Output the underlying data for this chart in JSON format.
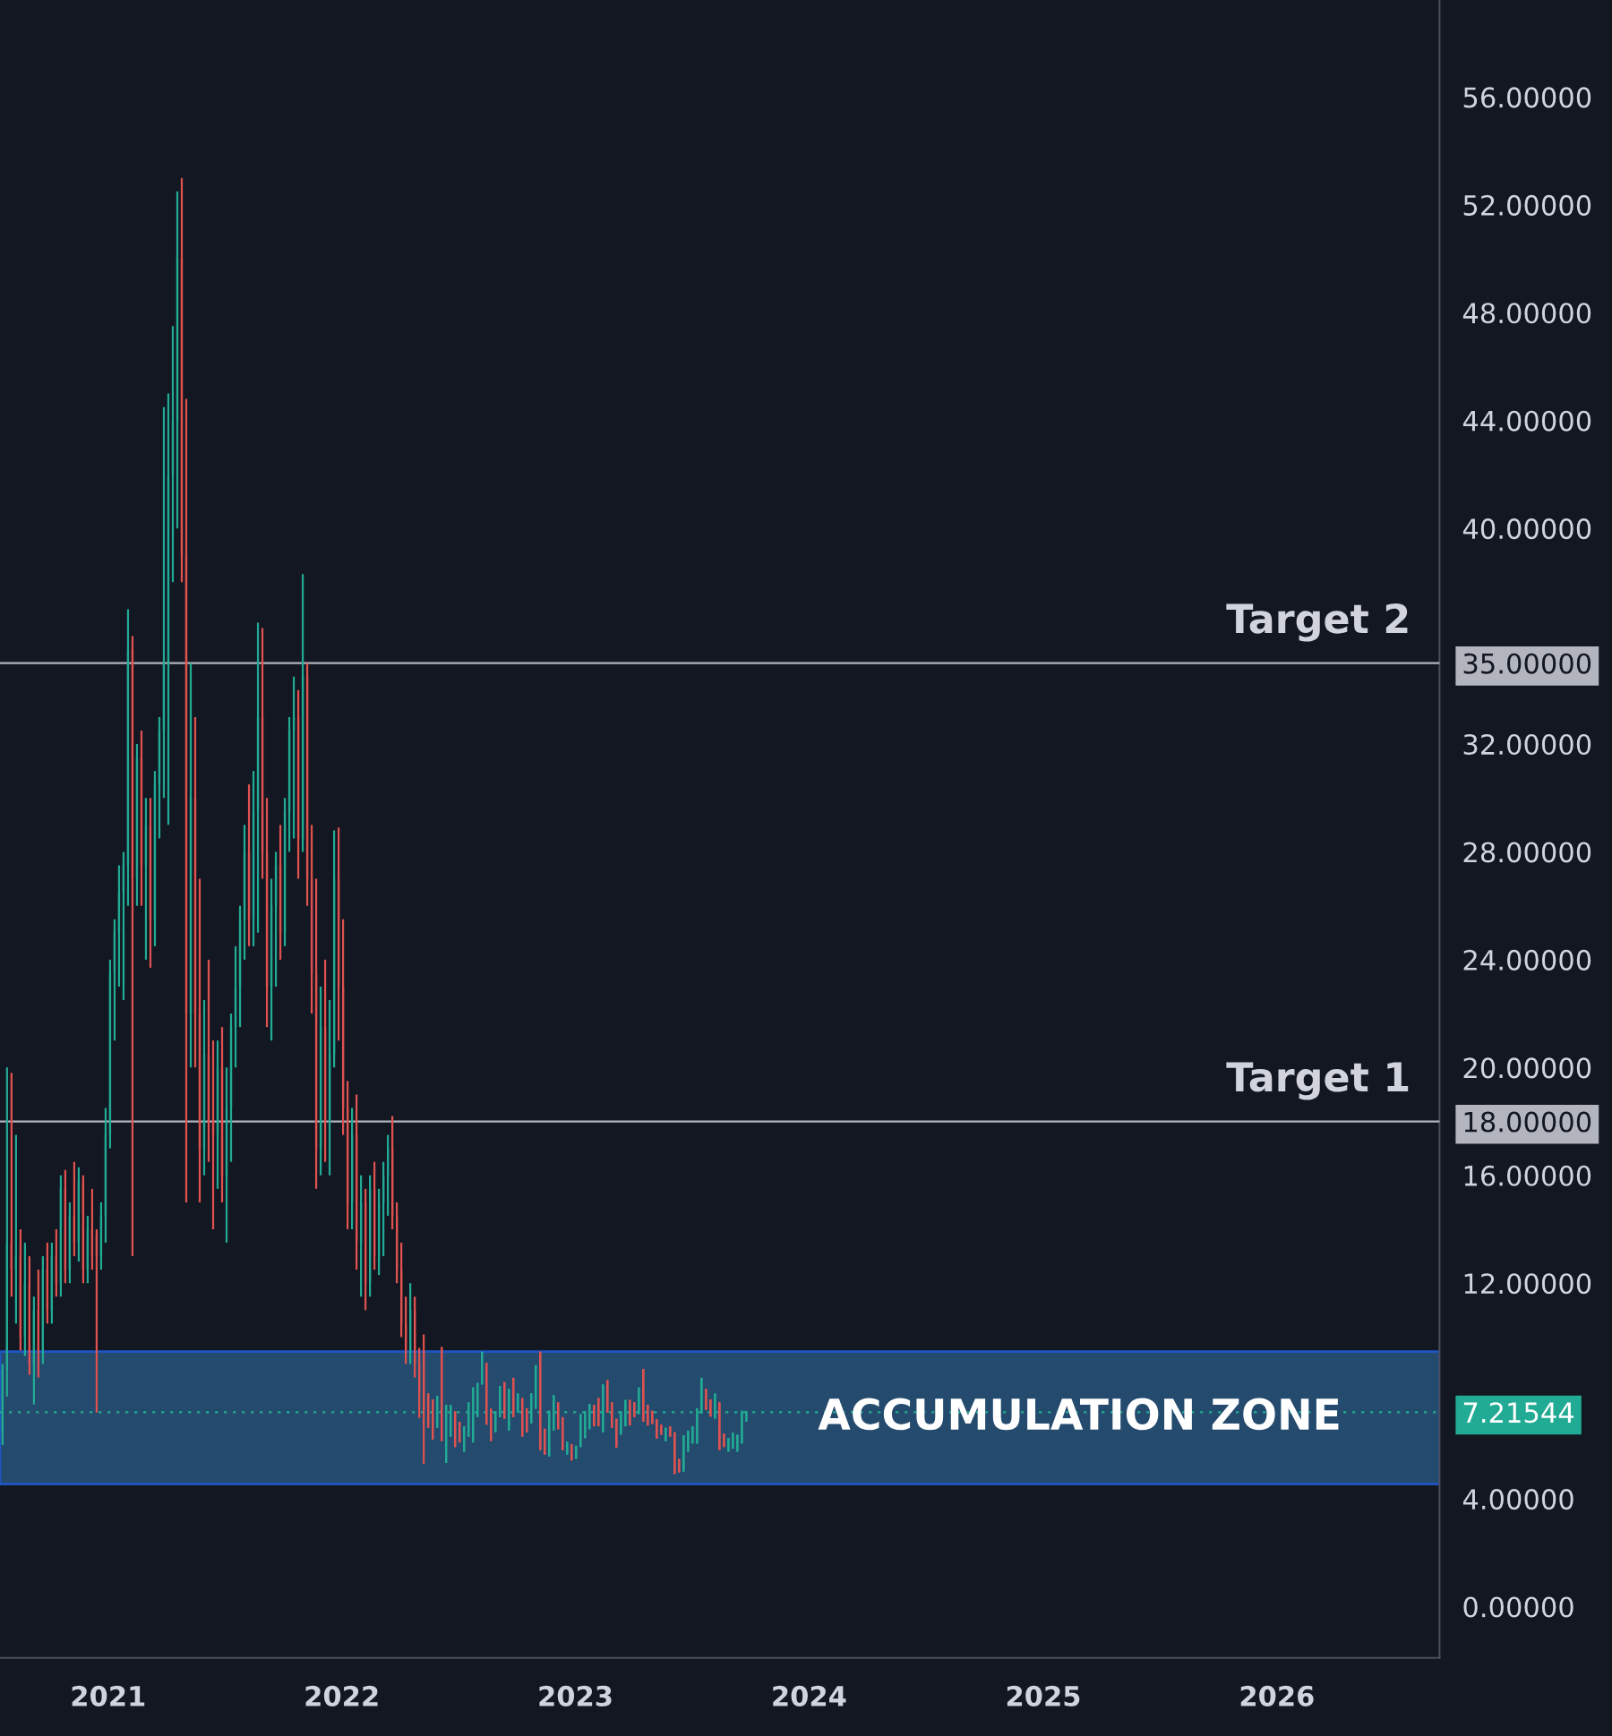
{
  "chart_data": {
    "type": "candlestick",
    "x": [
      "2020-07-20",
      "2020-07-27",
      "2020-08-03",
      "2020-08-10",
      "2020-08-17",
      "2020-08-24",
      "2020-08-31",
      "2020-09-07",
      "2020-09-14",
      "2020-09-21",
      "2020-09-28",
      "2020-10-05",
      "2020-10-12",
      "2020-10-19",
      "2020-10-26",
      "2020-11-02",
      "2020-11-09",
      "2020-11-16",
      "2020-11-23",
      "2020-11-30",
      "2020-12-07",
      "2020-12-14",
      "2020-12-21",
      "2020-12-28",
      "2021-01-04",
      "2021-01-11",
      "2021-01-18",
      "2021-01-25",
      "2021-02-01",
      "2021-02-08",
      "2021-02-15",
      "2021-02-22",
      "2021-03-01",
      "2021-03-08",
      "2021-03-15",
      "2021-03-22",
      "2021-03-29",
      "2021-04-05",
      "2021-04-12",
      "2021-04-19",
      "2021-04-26",
      "2021-05-03",
      "2021-05-10",
      "2021-05-17",
      "2021-05-24",
      "2021-05-31",
      "2021-06-07",
      "2021-06-14",
      "2021-06-21",
      "2021-06-28",
      "2021-07-05",
      "2021-07-12",
      "2021-07-19",
      "2021-07-26",
      "2021-08-02",
      "2021-08-09",
      "2021-08-16",
      "2021-08-23",
      "2021-08-30",
      "2021-09-06",
      "2021-09-13",
      "2021-09-20",
      "2021-09-27",
      "2021-10-04",
      "2021-10-11",
      "2021-10-18",
      "2021-10-25",
      "2021-11-01",
      "2021-11-08",
      "2021-11-15",
      "2021-11-22",
      "2021-11-29",
      "2021-12-06",
      "2021-12-13",
      "2021-12-20",
      "2021-12-27",
      "2022-01-03",
      "2022-01-10",
      "2022-01-17",
      "2022-01-24",
      "2022-01-31",
      "2022-02-07",
      "2022-02-14",
      "2022-02-21",
      "2022-02-28",
      "2022-03-07",
      "2022-03-14",
      "2022-03-21",
      "2022-03-28",
      "2022-04-04",
      "2022-04-11",
      "2022-04-18",
      "2022-04-25",
      "2022-05-02",
      "2022-05-09",
      "2022-05-16",
      "2022-05-23",
      "2022-05-30",
      "2022-06-06",
      "2022-06-13",
      "2022-06-20",
      "2022-06-27",
      "2022-07-04",
      "2022-07-11",
      "2022-07-18",
      "2022-07-25",
      "2022-08-01",
      "2022-08-08",
      "2022-08-15",
      "2022-08-22",
      "2022-08-29",
      "2022-09-05",
      "2022-09-12",
      "2022-09-19",
      "2022-09-26",
      "2022-10-03",
      "2022-10-10",
      "2022-10-17",
      "2022-10-24",
      "2022-10-31",
      "2022-11-07",
      "2022-11-14",
      "2022-11-21",
      "2022-11-28",
      "2022-12-05",
      "2022-12-12",
      "2022-12-19",
      "2022-12-26",
      "2023-01-02",
      "2023-01-09",
      "2023-01-16",
      "2023-01-23",
      "2023-01-30",
      "2023-02-06",
      "2023-02-13",
      "2023-02-20",
      "2023-02-27",
      "2023-03-06",
      "2023-03-13",
      "2023-03-20",
      "2023-03-27",
      "2023-04-03",
      "2023-04-10",
      "2023-04-17",
      "2023-04-24",
      "2023-05-01",
      "2023-05-08",
      "2023-05-15",
      "2023-05-22",
      "2023-05-29",
      "2023-06-05",
      "2023-06-12",
      "2023-06-19",
      "2023-06-26",
      "2023-07-03",
      "2023-07-10",
      "2023-07-17",
      "2023-07-24",
      "2023-07-31",
      "2023-08-07",
      "2023-08-14",
      "2023-08-21",
      "2023-08-28",
      "2023-09-04",
      "2023-09-11",
      "2023-09-18",
      "2023-09-25"
    ],
    "ohlc": [
      [
        6.5,
        9,
        6,
        8.8
      ],
      [
        8.8,
        20,
        7.8,
        13.5
      ],
      [
        13.5,
        19.8,
        11.5,
        12.5
      ],
      [
        12.5,
        17.5,
        10.5,
        13
      ],
      [
        13,
        14,
        9.5,
        10
      ],
      [
        10,
        13.5,
        9.3,
        12
      ],
      [
        12,
        13,
        8.6,
        9
      ],
      [
        9,
        11.5,
        7.5,
        11
      ],
      [
        11,
        12.5,
        8.5,
        9.5
      ],
      [
        9.5,
        13,
        9,
        12.5
      ],
      [
        12.5,
        13.5,
        10.5,
        11
      ],
      [
        11,
        13.5,
        10.5,
        13
      ],
      [
        13,
        14,
        11.5,
        12
      ],
      [
        12,
        16,
        11.5,
        15.5
      ],
      [
        15.5,
        16.2,
        12,
        12.5
      ],
      [
        12.5,
        15,
        12,
        14.5
      ],
      [
        14.5,
        16.5,
        13,
        13.5
      ],
      [
        13.5,
        16.3,
        12.8,
        15.8
      ],
      [
        15.8,
        16,
        12,
        12.5
      ],
      [
        12.5,
        14.5,
        12,
        14
      ],
      [
        14,
        15.5,
        12.5,
        13
      ],
      [
        13.8,
        14,
        7.2,
        13
      ],
      [
        13,
        15,
        12.5,
        14.5
      ],
      [
        14.5,
        18.5,
        13.5,
        17.5
      ],
      [
        17.5,
        24,
        17,
        23.5
      ],
      [
        23.5,
        25.5,
        21,
        25
      ],
      [
        25,
        27.5,
        23,
        26.5
      ],
      [
        26.5,
        28,
        22.5,
        27.5
      ],
      [
        27.5,
        37,
        26,
        35.5
      ],
      [
        35.5,
        36,
        13,
        27
      ],
      [
        27,
        32,
        26,
        31.5
      ],
      [
        31.5,
        32.5,
        26,
        27.5
      ],
      [
        27.5,
        30,
        24,
        29
      ],
      [
        29,
        30,
        23.7,
        25.5
      ],
      [
        25.5,
        31,
        24.5,
        30.5
      ],
      [
        30.5,
        33,
        28.5,
        32.5
      ],
      [
        32.5,
        44.5,
        30,
        35
      ],
      [
        35,
        45,
        29,
        42
      ],
      [
        42,
        47.5,
        38,
        44
      ],
      [
        44,
        52.5,
        40,
        50
      ],
      [
        50,
        53,
        38,
        39
      ],
      [
        39,
        44.8,
        15,
        22
      ],
      [
        22,
        35,
        20,
        30
      ],
      [
        30,
        33,
        20,
        22
      ],
      [
        22,
        27,
        15,
        17
      ],
      [
        17,
        22.5,
        16,
        20.5
      ],
      [
        20.5,
        24,
        16.5,
        18
      ],
      [
        18,
        21,
        14,
        17.5
      ],
      [
        17.5,
        21,
        15.5,
        20
      ],
      [
        20,
        21.5,
        15,
        16
      ],
      [
        16,
        20,
        13.5,
        18.5
      ],
      [
        18.5,
        22,
        16.5,
        21.5
      ],
      [
        21.5,
        24.5,
        20,
        23
      ],
      [
        23,
        26,
        21.5,
        25.5
      ],
      [
        25.5,
        29,
        24,
        28
      ],
      [
        28,
        30.5,
        24.5,
        25.5
      ],
      [
        25.5,
        31,
        24.5,
        29.5
      ],
      [
        29.5,
        36.5,
        25,
        33
      ],
      [
        33,
        36.3,
        27,
        28
      ],
      [
        28,
        30,
        21.5,
        23
      ],
      [
        23,
        27,
        21,
        26
      ],
      [
        26,
        28,
        23,
        27.5
      ],
      [
        27.5,
        29,
        24,
        25
      ],
      [
        25,
        30,
        24.5,
        29.5
      ],
      [
        29.5,
        33,
        28,
        32.5
      ],
      [
        32.5,
        34.5,
        28.5,
        33
      ],
      [
        33,
        34,
        27,
        28.5
      ],
      [
        28.5,
        38.3,
        28,
        34.5
      ],
      [
        34.5,
        35,
        26,
        27
      ],
      [
        27,
        29,
        22,
        23.5
      ],
      [
        23.5,
        27,
        15.5,
        17
      ],
      [
        17,
        23,
        16,
        21.5
      ],
      [
        21.5,
        24,
        16.5,
        18
      ],
      [
        18,
        22.5,
        16,
        20.5
      ],
      [
        20.5,
        28.8,
        20,
        27
      ],
      [
        27,
        28.9,
        21,
        23
      ],
      [
        23,
        25.5,
        17.5,
        18.5
      ],
      [
        18.5,
        19.5,
        14,
        15
      ],
      [
        15,
        18.5,
        14,
        17.5
      ],
      [
        17.5,
        19,
        12.5,
        13.5
      ],
      [
        13.5,
        16,
        11.5,
        15
      ],
      [
        15,
        15.5,
        11,
        12
      ],
      [
        12,
        16,
        11.5,
        15.5
      ],
      [
        15.5,
        16.5,
        12.5,
        13
      ],
      [
        13,
        15.5,
        12.3,
        15
      ],
      [
        15,
        16.5,
        13,
        16
      ],
      [
        16,
        17.5,
        14.5,
        17
      ],
      [
        17,
        18.2,
        14,
        14.5
      ],
      [
        14.5,
        15,
        12,
        12.5
      ],
      [
        12.5,
        13.5,
        10,
        10.5
      ],
      [
        10.5,
        11.5,
        9,
        9.5
      ],
      [
        9.5,
        12,
        9,
        11
      ],
      [
        11,
        11.5,
        8.5,
        9
      ],
      [
        9,
        9.6,
        7,
        8
      ],
      [
        9.5,
        10.1,
        5.3,
        7.3
      ],
      [
        7.91,
        7.91,
        6.64,
        6.64
      ],
      [
        7.69,
        7.69,
        6.2,
        6.2
      ],
      [
        6.64,
        7.82,
        6.64,
        7.82
      ],
      [
        9.63,
        9.63,
        6.14,
        6.14
      ],
      [
        5.33,
        7.49,
        5.33,
        7.49
      ],
      [
        6.31,
        7.49,
        6.31,
        7.49
      ],
      [
        7.25,
        7.25,
        5.92,
        5.92
      ],
      [
        6.86,
        6.86,
        6.09,
        6.09
      ],
      [
        5.75,
        6.69,
        5.75,
        6.69
      ],
      [
        6.31,
        7.58,
        6.31,
        7.58
      ],
      [
        6.09,
        8.13,
        6.09,
        8.13
      ],
      [
        7.03,
        8.3,
        7.03,
        8.3
      ],
      [
        8.24,
        9.46,
        8.24,
        9.46
      ],
      [
        9.04,
        9.04,
        6.75,
        6.75
      ],
      [
        7.34,
        7.34,
        6.14,
        6.14
      ],
      [
        6.47,
        7.25,
        6.47,
        7.25
      ],
      [
        7.03,
        8.19,
        7.03,
        8.19
      ],
      [
        8.33,
        8.33,
        6.97,
        6.97
      ],
      [
        6.53,
        8.08,
        6.53,
        8.08
      ],
      [
        8.49,
        8.49,
        7.03,
        7.03
      ],
      [
        7.19,
        7.91,
        7.19,
        7.91
      ],
      [
        7.74,
        7.74,
        6.31,
        6.31
      ],
      [
        7.36,
        7.36,
        6.47,
        6.47
      ],
      [
        6.8,
        7.91,
        6.8,
        7.91
      ],
      [
        7.34,
        8.96,
        7.34,
        8.96
      ],
      [
        9.46,
        9.46,
        5.81,
        5.81
      ],
      [
        6.6,
        6.6,
        5.64,
        5.64
      ],
      [
        5.57,
        7.27,
        5.57,
        7.27
      ],
      [
        6.53,
        7.85,
        6.53,
        7.85
      ],
      [
        7.58,
        7.58,
        6.58,
        6.58
      ],
      [
        7.03,
        7.03,
        5.81,
        5.81
      ],
      [
        5.64,
        6.12,
        5.64,
        6.12
      ],
      [
        6.03,
        6.03,
        5.42,
        5.42
      ],
      [
        5.48,
        5.97,
        5.48,
        5.97
      ],
      [
        5.92,
        7.14,
        5.92,
        7.14
      ],
      [
        6.25,
        7.25,
        6.25,
        7.25
      ],
      [
        6.58,
        7.52,
        6.58,
        7.52
      ],
      [
        7.49,
        7.49,
        6.69,
        6.69
      ],
      [
        7.74,
        7.74,
        6.69,
        6.69
      ],
      [
        6.47,
        8.24,
        6.47,
        8.24
      ],
      [
        8.41,
        8.41,
        7.19,
        7.19
      ],
      [
        7.58,
        7.58,
        6.64,
        6.64
      ],
      [
        6.97,
        6.97,
        5.9,
        5.9
      ],
      [
        6.38,
        7.25,
        6.38,
        7.25
      ],
      [
        6.69,
        7.67,
        6.69,
        7.67
      ],
      [
        7.67,
        7.67,
        6.72,
        6.72
      ],
      [
        7.58,
        7.58,
        7.03,
        7.03
      ],
      [
        7.14,
        8.13,
        7.14,
        8.13
      ],
      [
        8.82,
        8.82,
        6.86,
        6.86
      ],
      [
        7.49,
        7.49,
        6.72,
        6.72
      ],
      [
        7.27,
        7.27,
        6.78,
        6.78
      ],
      [
        6.95,
        6.95,
        6.23,
        6.23
      ],
      [
        6.75,
        6.75,
        6.38,
        6.38
      ],
      [
        6.14,
        6.64,
        6.14,
        6.64
      ],
      [
        6.69,
        6.69,
        6.31,
        6.31
      ],
      [
        6.47,
        6.47,
        4.92,
        4.92
      ],
      [
        5.48,
        5.48,
        4.98,
        4.98
      ],
      [
        5.01,
        6.36,
        5.01,
        6.36
      ],
      [
        5.75,
        6.53,
        5.75,
        6.53
      ],
      [
        6.05,
        6.69,
        6.05,
        6.69
      ],
      [
        6.05,
        7.36,
        6.05,
        7.36
      ],
      [
        7.16,
        8.49,
        7.16,
        8.49
      ],
      [
        8.08,
        8.08,
        7.3,
        7.3
      ],
      [
        7.69,
        7.69,
        7.05,
        7.05
      ],
      [
        6.97,
        7.91,
        6.97,
        7.91
      ],
      [
        7.58,
        7.58,
        5.81,
        5.81
      ],
      [
        6.42,
        6.42,
        5.92,
        5.92
      ],
      [
        5.75,
        6.25,
        5.75,
        6.25
      ],
      [
        5.86,
        6.45,
        5.86,
        6.45
      ],
      [
        5.75,
        6.38,
        5.75,
        6.38
      ],
      [
        6.05,
        7.27,
        6.05,
        7.27
      ],
      [
        6.86,
        7.27,
        6.86,
        7.21544
      ]
    ],
    "colors": [
      "#22ab94",
      "#22ab94",
      "#e0524f",
      "#22ab94",
      "#e0524f",
      "#22ab94",
      "#e0524f",
      "#22ab94",
      "#e0524f",
      "#22ab94",
      "#e0524f",
      "#22ab94",
      "#e0524f",
      "#22ab94",
      "#e0524f",
      "#22ab94",
      "#e0524f",
      "#22ab94",
      "#e0524f",
      "#22ab94",
      "#e0524f",
      "#e0524f",
      "#22ab94",
      "#22ab94",
      "#22ab94",
      "#22ab94",
      "#22ab94",
      "#22ab94",
      "#22ab94",
      "#e0524f",
      "#22ab94",
      "#e0524f",
      "#22ab94",
      "#e0524f",
      "#22ab94",
      "#22ab94",
      "#22ab94",
      "#22ab94",
      "#22ab94",
      "#22ab94",
      "#e0524f",
      "#e0524f",
      "#22ab94",
      "#e0524f",
      "#e0524f",
      "#22ab94",
      "#e0524f",
      "#e0524f",
      "#22ab94",
      "#e0524f",
      "#22ab94",
      "#22ab94",
      "#22ab94",
      "#22ab94",
      "#22ab94",
      "#e0524f",
      "#22ab94",
      "#22ab94",
      "#e0524f",
      "#e0524f",
      "#22ab94",
      "#22ab94",
      "#e0524f",
      "#22ab94",
      "#22ab94",
      "#22ab94",
      "#e0524f",
      "#22ab94",
      "#e0524f",
      "#e0524f",
      "#e0524f",
      "#22ab94",
      "#e0524f",
      "#22ab94",
      "#22ab94",
      "#e0524f",
      "#e0524f",
      "#e0524f",
      "#22ab94",
      "#e0524f",
      "#22ab94",
      "#e0524f",
      "#22ab94",
      "#e0524f",
      "#22ab94",
      "#22ab94",
      "#22ab94",
      "#e0524f",
      "#e0524f",
      "#e0524f",
      "#e0524f",
      "#22ab94",
      "#e0524f",
      "#e0524f",
      "#e0524f",
      "#e0524f",
      "#e0524f",
      "#22ab94",
      "#e0524f",
      "#22ab94",
      "#22ab94",
      "#e0524f",
      "#e0524f",
      "#22ab94",
      "#22ab94",
      "#22ab94",
      "#22ab94",
      "#22ab94",
      "#e0524f",
      "#e0524f",
      "#22ab94",
      "#22ab94",
      "#e0524f",
      "#22ab94",
      "#e0524f",
      "#22ab94",
      "#e0524f",
      "#e0524f",
      "#22ab94",
      "#22ab94",
      "#e0524f",
      "#e0524f",
      "#22ab94",
      "#22ab94",
      "#e0524f",
      "#e0524f",
      "#22ab94",
      "#e0524f",
      "#22ab94",
      "#22ab94",
      "#22ab94",
      "#22ab94",
      "#e0524f",
      "#e0524f",
      "#22ab94",
      "#e0524f",
      "#e0524f",
      "#e0524f",
      "#22ab94",
      "#22ab94",
      "#e0524f",
      "#e0524f",
      "#22ab94",
      "#e0524f",
      "#e0524f",
      "#e0524f",
      "#e0524f",
      "#e0524f",
      "#22ab94",
      "#e0524f",
      "#e0524f",
      "#e0524f",
      "#22ab94",
      "#22ab94",
      "#22ab94",
      "#22ab94",
      "#22ab94",
      "#e0524f",
      "#e0524f",
      "#22ab94",
      "#e0524f",
      "#e0524f",
      "#22ab94",
      "#22ab94",
      "#22ab94",
      "#22ab94",
      "#22ab94"
    ],
    "xlim": [
      "2020-07-16",
      "2026-09-12"
    ],
    "xticks": [
      "2021",
      "2022",
      "2023",
      "2024",
      "2025",
      "2026"
    ],
    "ylim": [
      -1.9,
      59.6
    ],
    "yticks": [
      {
        "value": 0,
        "label": "0.00000"
      },
      {
        "value": 4,
        "label": "4.00000"
      },
      {
        "value": 7.21544,
        "label": "7.21544"
      },
      {
        "value": 12,
        "label": "12.00000"
      },
      {
        "value": 16,
        "label": "16.00000"
      },
      {
        "value": 18,
        "label": "18.00000"
      },
      {
        "value": 20,
        "label": "20.00000"
      },
      {
        "value": 24,
        "label": "24.00000"
      },
      {
        "value": 28,
        "label": "28.00000"
      },
      {
        "value": 32,
        "label": "32.00000"
      },
      {
        "value": 35,
        "label": "35.00000"
      },
      {
        "value": 40,
        "label": "40.00000"
      },
      {
        "value": 44,
        "label": "44.00000"
      },
      {
        "value": 48,
        "label": "48.00000"
      },
      {
        "value": 52,
        "label": "52.00000"
      },
      {
        "value": 56,
        "label": "56.00000"
      }
    ],
    "ref_lines": [
      {
        "axis": "y",
        "value": 35,
        "label": "Target 2",
        "color": "#b2b5be",
        "line_style": "solid"
      },
      {
        "axis": "y",
        "value": 18,
        "label": "Target 1",
        "color": "#b2b5be",
        "line_style": "solid"
      },
      {
        "axis": "y",
        "value": 7.21544,
        "color": "#22ab94",
        "line_style": "dotted"
      }
    ],
    "bands": [
      {
        "axis": "y",
        "from": 4.55,
        "to": 9.46,
        "label": "ACCUMULATION ZONE",
        "color": "#244a6d"
      }
    ],
    "grid": false
  }
}
